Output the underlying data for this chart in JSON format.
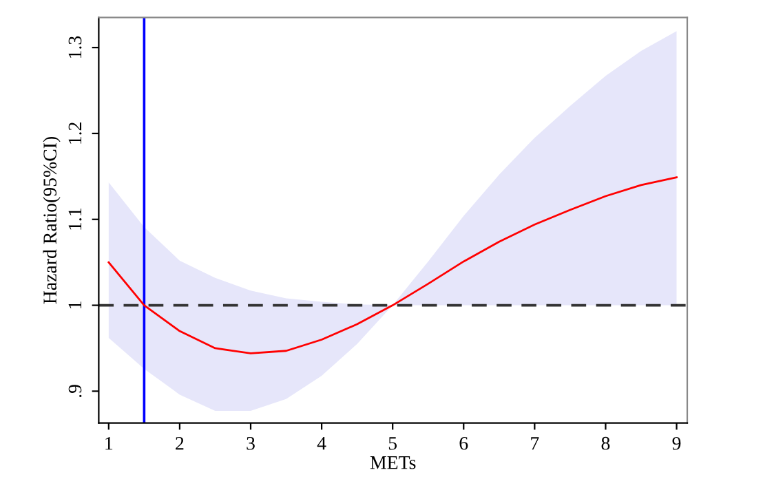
{
  "chart_data": {
    "type": "line",
    "xlabel": "METs",
    "ylabel": "Hazard Ratio(95%CI)",
    "x": [
      1,
      1.5,
      2,
      2.5,
      3,
      3.5,
      4,
      4.5,
      5,
      5.5,
      6,
      6.5,
      7,
      7.5,
      8,
      8.5,
      9
    ],
    "series": [
      {
        "color": "#ff0000",
        "values": [
          1.05,
          1.0,
          0.97,
          0.95,
          0.944,
          0.947,
          0.96,
          0.978,
          1.0,
          1.025,
          1.051,
          1.074,
          1.094,
          1.111,
          1.127,
          1.14,
          1.149
        ],
        "upper": [
          1.143,
          1.091,
          1.052,
          1.032,
          1.017,
          1.008,
          1.004,
          1.001,
          1.0,
          1.051,
          1.104,
          1.152,
          1.195,
          1.232,
          1.267,
          1.296,
          1.319
        ],
        "lower": [
          0.962,
          0.926,
          0.896,
          0.877,
          0.877,
          0.891,
          0.918,
          0.955,
          1.0,
          1.0,
          1.0,
          1.0,
          1.0,
          1.0,
          1.0,
          1.0,
          1.0
        ]
      }
    ],
    "ref_lines": [
      {
        "axis": "x",
        "value": 1.5,
        "color": "#0000ff",
        "line_style": "solid"
      },
      {
        "axis": "y",
        "value": 1,
        "color": "#333333",
        "line_style": "dashed"
      }
    ],
    "xlim": [
      0.86,
      9.15
    ],
    "ylim": [
      0.863,
      1.335
    ],
    "xticks": [
      1,
      2,
      3,
      4,
      5,
      6,
      7,
      8,
      9
    ],
    "yticks": [
      {
        "value": 0.9,
        "label": ".9"
      },
      {
        "value": 1,
        "label": "1"
      },
      {
        "value": 1.1,
        "label": "1.1"
      },
      {
        "value": 1.2,
        "label": "1.2"
      },
      {
        "value": 1.3,
        "label": "1.3"
      }
    ],
    "grid": false,
    "legend": false,
    "marker": "none",
    "line_style": "solid"
  }
}
